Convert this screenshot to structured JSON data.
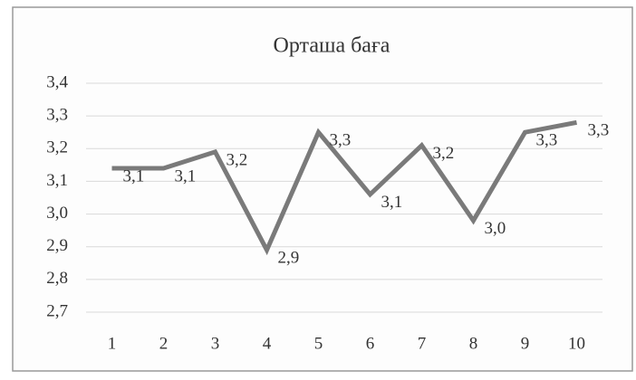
{
  "chart_data": {
    "type": "line",
    "title": "Орташа баға",
    "categories": [
      "1",
      "2",
      "3",
      "4",
      "5",
      "6",
      "7",
      "8",
      "9",
      "10"
    ],
    "series": [
      {
        "name": "Орташа баға",
        "color": "#7a7a7a",
        "values": [
          3.14,
          3.14,
          3.19,
          2.89,
          3.25,
          3.06,
          3.21,
          2.98,
          3.25,
          3.28
        ],
        "value_labels": [
          "3,1",
          "3,1",
          "3,2",
          "2,9",
          "3,3",
          "3,1",
          "3,2",
          "3,0",
          "3,3",
          "3,3"
        ]
      }
    ],
    "ylim": [
      2.7,
      3.4
    ],
    "yticks": [
      {
        "value": 2.7,
        "label": "2,7"
      },
      {
        "value": 2.8,
        "label": "2,8"
      },
      {
        "value": 2.9,
        "label": "2,9"
      },
      {
        "value": 3.0,
        "label": "3,0"
      },
      {
        "value": 3.1,
        "label": "3,1"
      },
      {
        "value": 3.2,
        "label": "3,2"
      },
      {
        "value": 3.3,
        "label": "3,3"
      },
      {
        "value": 3.4,
        "label": "3,4"
      }
    ],
    "grid": true
  }
}
